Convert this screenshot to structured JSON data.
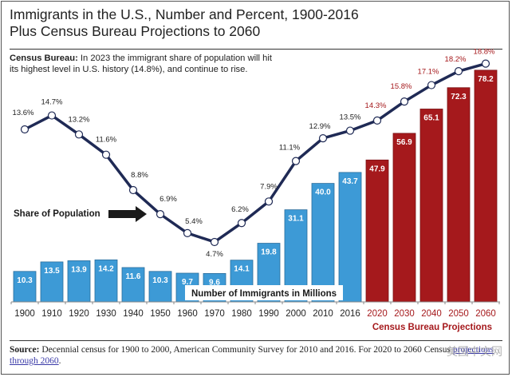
{
  "header": {
    "title_line1": "Immigrants in the U.S., Number and Percent, 1900-2016",
    "title_line2": "Plus Census Bureau Projections to 2060"
  },
  "subtitle": {
    "label": "Census Bureau:",
    "text": " In 2023 the immigrant share of population will hit its highest level in U.S. history (14.8%), and continue to rise."
  },
  "footer": {
    "source_label": "Source:",
    "source_text": " Decennial census for 1900 to 2000, American Community Survey for 2010 and 2016. For 2020 to 2060 Census ",
    "source_link": "projections through 2060",
    "source_end": ".",
    "watermark": "美国中文网"
  },
  "colors": {
    "historical_bar": "#3d9ad6",
    "projection_bar": "#a5191c",
    "line": "#1f2a55",
    "projection_label": "#a5191c"
  },
  "chart_data": {
    "type": "bar",
    "title": "Immigrants in the U.S., Number and Percent, 1900-2016 Plus Census Bureau Projections to 2060",
    "categories": [
      "1900",
      "1910",
      "1920",
      "1930",
      "1940",
      "1950",
      "1960",
      "1970",
      "1980",
      "1990",
      "2000",
      "2010",
      "2016",
      "2020",
      "2030",
      "2040",
      "2050",
      "2060"
    ],
    "series": [
      {
        "name": "Number of Immigrants in Millions",
        "type": "bar",
        "values": [
          10.3,
          13.5,
          13.9,
          14.2,
          11.6,
          10.3,
          9.7,
          9.6,
          14.1,
          19.8,
          31.1,
          40.0,
          43.7,
          47.9,
          56.9,
          65.1,
          72.3,
          78.2
        ],
        "labels": [
          "10.3",
          "13.5",
          "13.9",
          "14.2",
          "11.6",
          "10.3",
          "9.7",
          "9.6",
          "14.1",
          "19.8",
          "31.1",
          "40.0",
          "43.7",
          "47.9",
          "56.9",
          "65.1",
          "72.3",
          "78.2"
        ]
      },
      {
        "name": "Share of Population",
        "type": "line",
        "values": [
          13.6,
          14.7,
          13.2,
          11.6,
          8.8,
          6.9,
          5.4,
          4.7,
          6.2,
          7.9,
          11.1,
          12.9,
          13.5,
          14.3,
          15.8,
          17.1,
          18.2,
          18.8
        ],
        "labels": [
          "13.6%",
          "14.7%",
          "13.2%",
          "11.6%",
          "8.8%",
          "6.9%",
          "5.4%",
          "4.7%",
          "6.2%",
          "7.9%",
          "11.1%",
          "12.9%",
          "13.5%",
          "14.3%",
          "15.8%",
          "17.1%",
          "18.2%",
          "18.8%"
        ]
      }
    ],
    "projection_start_index": 13,
    "annotations": {
      "share_label": "Share of Population",
      "bars_label": "Number of Immigrants in Millions",
      "projection_label": "Census Bureau Projections"
    },
    "xlabel": "",
    "ylabel": "",
    "grid": false,
    "legend": "none"
  }
}
